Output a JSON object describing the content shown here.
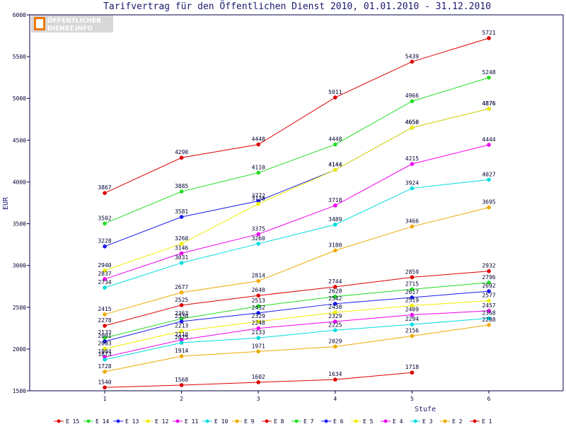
{
  "chart_data": {
    "type": "line",
    "title": "Tarifvertrag für den Öffentlichen Dienst 2010, 01.01.2010 - 31.12.2010",
    "xlabel": "Stufe",
    "ylabel": "EUR",
    "categories": [
      "1",
      "2",
      "3",
      "4",
      "5",
      "6"
    ],
    "ylim": [
      1500,
      6000
    ],
    "yticks": [
      1500,
      2000,
      2500,
      3000,
      3500,
      4000,
      4500,
      5000,
      5500,
      6000
    ],
    "grid": false,
    "legend_position": "bottom",
    "series": [
      {
        "name": "E_15",
        "color": "#dd0000",
        "values": [
          3867,
          4290,
          4448,
          5011,
          5439,
          5721
        ]
      },
      {
        "name": "E_14",
        "color": "#22dd22",
        "values": [
          3502,
          3885,
          4110,
          4448,
          4966,
          5248
        ]
      },
      {
        "name": "E_13",
        "color": "#1a1aee",
        "values": [
          3228,
          3581,
          3772,
          4144,
          4650,
          4876
        ]
      },
      {
        "name": "E_12",
        "color": "#eeee00",
        "values": [
          2940,
          3260,
          3738,
          4144,
          4650,
          4876
        ]
      },
      {
        "name": "E_11",
        "color": "#ee00ee",
        "values": [
          2837,
          3146,
          3375,
          3718,
          4215,
          4444
        ]
      },
      {
        "name": "E_10",
        "color": "#00dddd",
        "values": [
          2734,
          3031,
          3260,
          3489,
          3924,
          4027
        ]
      },
      {
        "name": "E_9",
        "color": "#eeaa00",
        "values": [
          2415,
          2677,
          2814,
          3180,
          3466,
          3695
        ]
      },
      {
        "name": "E_8",
        "color": "#dd0000",
        "values": [
          2278,
          2525,
          2640,
          2744,
          2859,
          2932
        ]
      },
      {
        "name": "E_7",
        "color": "#22dd22",
        "values": [
          2133,
          2363,
          2513,
          2628,
          2715,
          2796
        ]
      },
      {
        "name": "E_6",
        "color": "#1a1aee",
        "values": [
          2091,
          2330,
          2432,
          2542,
          2617,
          2692
        ]
      },
      {
        "name": "E_5",
        "color": "#eeee00",
        "values": [
          2003,
          2213,
          2329,
          2438,
          2519,
          2577
        ]
      },
      {
        "name": "E_4",
        "color": "#ee00ee",
        "values": [
          1904,
          2110,
          2248,
          2329,
          2409,
          2457
        ]
      },
      {
        "name": "E_3",
        "color": "#00dddd",
        "values": [
          1873,
          2075,
          2133,
          2225,
          2294,
          2368
        ]
      },
      {
        "name": "E_2",
        "color": "#eeaa00",
        "values": [
          1728,
          1914,
          1971,
          2029,
          2156,
          2288
        ]
      },
      {
        "name": "E_1",
        "color": "#dd0000",
        "values": [
          1540,
          1568,
          1602,
          1634,
          1718,
          null
        ]
      }
    ]
  },
  "logo": {
    "line1": "ÖFFENTLICHER",
    "line2": "DIENST.INFO"
  }
}
